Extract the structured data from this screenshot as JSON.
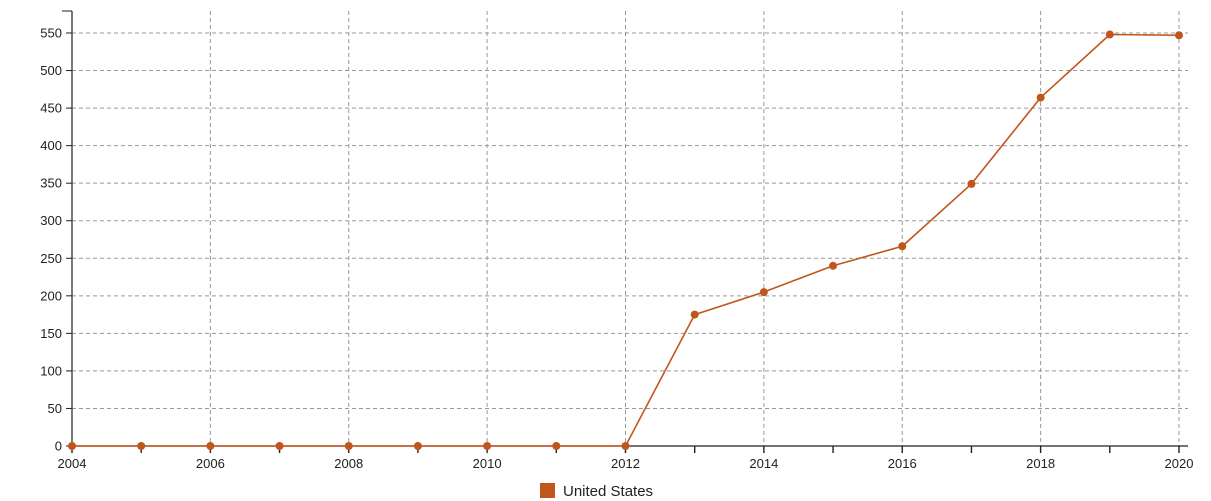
{
  "chart_data": {
    "type": "line",
    "title": "",
    "xlabel": "",
    "ylabel": "",
    "x": [
      2004,
      2005,
      2006,
      2007,
      2008,
      2009,
      2010,
      2011,
      2012,
      2013,
      2014,
      2015,
      2016,
      2017,
      2018,
      2019,
      2020
    ],
    "series": [
      {
        "name": "United States",
        "color": "#c0561c",
        "values": [
          0,
          0,
          0,
          0,
          0,
          0,
          0,
          0,
          0,
          175,
          205,
          240,
          266,
          349,
          464,
          548,
          547
        ]
      }
    ],
    "xlim": [
      2004,
      2020
    ],
    "ylim": [
      0,
      550
    ],
    "x_tick_labels": [
      "2004",
      "2006",
      "2008",
      "2010",
      "2012",
      "2014",
      "2016",
      "2018",
      "2020"
    ],
    "y_tick_labels": [
      "0",
      "50",
      "100",
      "150",
      "200",
      "250",
      "300",
      "350",
      "400",
      "450",
      "500",
      "550"
    ],
    "grid": true,
    "legend_position": "bottom-center"
  }
}
